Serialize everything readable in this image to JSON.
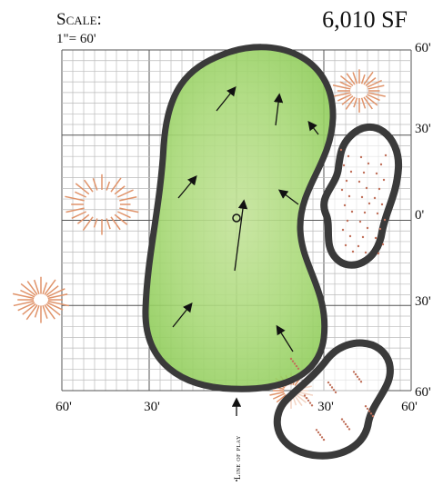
{
  "header": {
    "scale_label": "Scale:",
    "scale_value": "1\"= 60'",
    "area": "6,010 SF"
  },
  "right_axis": [
    "60'",
    "30'",
    "0'",
    "30'",
    "60'"
  ],
  "bottom_axis": [
    "60'",
    "30'",
    "30'",
    "60'"
  ],
  "line_of_play": "Line of play"
}
